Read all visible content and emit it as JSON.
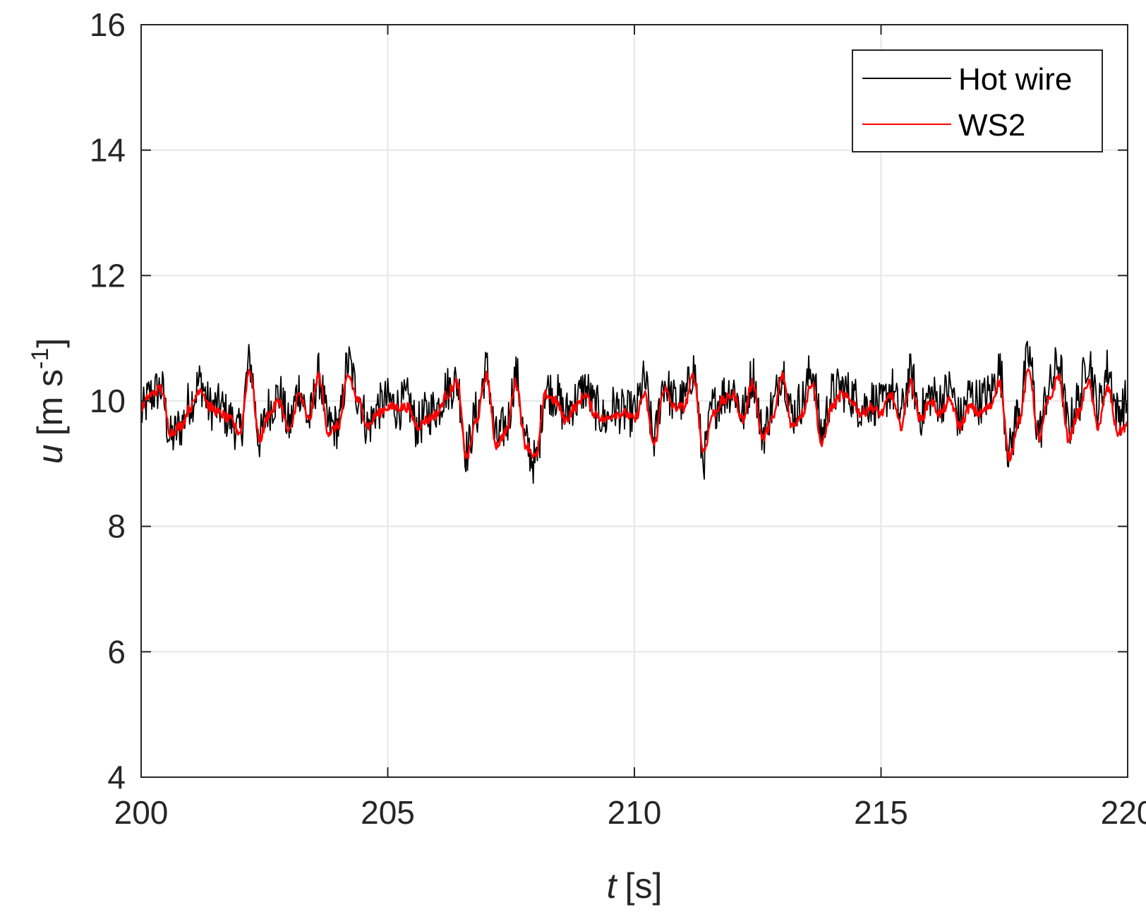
{
  "chart_data": {
    "type": "line",
    "xlabel": {
      "var": "t",
      "unit": "[s]"
    },
    "ylabel": {
      "var": "u",
      "unit_pre": "[m s",
      "unit_sup": "-1",
      "unit_post": "]"
    },
    "xlim": [
      200,
      220
    ],
    "ylim": [
      4,
      16
    ],
    "x_ticks": [
      "200",
      "205",
      "210",
      "215",
      "220"
    ],
    "y_ticks": [
      "4",
      "6",
      "8",
      "10",
      "12",
      "14",
      "16"
    ],
    "grid": true,
    "legend": {
      "placement": "top-right"
    },
    "series": [
      {
        "name": "Hot wire",
        "color": "#000000",
        "x": [
          200.0,
          200.2,
          200.4,
          200.6,
          200.8,
          201.0,
          201.2,
          201.4,
          201.6,
          201.8,
          202.0,
          202.2,
          202.4,
          202.6,
          202.8,
          203.0,
          203.2,
          203.4,
          203.6,
          203.8,
          204.0,
          204.2,
          204.4,
          204.6,
          204.8,
          205.0,
          205.2,
          205.4,
          205.6,
          205.8,
          206.0,
          206.2,
          206.4,
          206.6,
          206.8,
          207.0,
          207.2,
          207.4,
          207.6,
          207.8,
          208.0,
          208.2,
          208.4,
          208.6,
          208.8,
          209.0,
          209.2,
          209.4,
          209.6,
          209.8,
          210.0,
          210.2,
          210.4,
          210.6,
          210.8,
          211.0,
          211.2,
          211.4,
          211.6,
          211.8,
          212.0,
          212.2,
          212.4,
          212.6,
          212.8,
          213.0,
          213.2,
          213.4,
          213.6,
          213.8,
          214.0,
          214.2,
          214.4,
          214.6,
          214.8,
          215.0,
          215.2,
          215.4,
          215.6,
          215.8,
          216.0,
          216.2,
          216.4,
          216.6,
          216.8,
          217.0,
          217.2,
          217.4,
          217.6,
          217.8,
          218.0,
          218.2,
          218.4,
          218.6,
          218.8,
          219.0,
          219.2,
          219.4,
          219.6,
          219.8,
          220.0
        ],
        "values": [
          9.8,
          10.1,
          10.2,
          9.4,
          9.6,
          10.0,
          10.3,
          9.9,
          9.9,
          9.7,
          9.5,
          10.6,
          9.4,
          9.9,
          10.1,
          9.6,
          10.2,
          9.7,
          10.4,
          9.6,
          9.6,
          10.6,
          10.1,
          9.6,
          9.9,
          10.0,
          9.9,
          10.0,
          9.6,
          9.8,
          9.9,
          10.2,
          10.3,
          9.2,
          9.8,
          10.5,
          9.4,
          9.6,
          10.4,
          9.3,
          9.0,
          10.2,
          10.1,
          9.8,
          10.0,
          10.2,
          9.9,
          9.7,
          9.9,
          9.8,
          9.8,
          10.3,
          9.4,
          10.3,
          10.0,
          10.0,
          10.5,
          9.1,
          9.9,
          10.1,
          10.2,
          9.8,
          10.4,
          9.5,
          9.9,
          10.5,
          9.8,
          10.0,
          10.5,
          9.5,
          10.1,
          10.2,
          10.1,
          9.9,
          10.0,
          9.9,
          10.2,
          9.8,
          10.4,
          9.8,
          10.1,
          10.0,
          10.2,
          9.7,
          10.1,
          10.0,
          10.1,
          10.5,
          9.2,
          9.9,
          10.7,
          9.5,
          10.2,
          10.6,
          9.6,
          10.0,
          10.7,
          9.9,
          10.5,
          9.8,
          10.0
        ],
        "noise_amplitude": 0.38
      },
      {
        "name": "WS2",
        "color": "#ff0000",
        "x": [
          200.0,
          200.2,
          200.4,
          200.6,
          200.8,
          201.0,
          201.2,
          201.4,
          201.6,
          201.8,
          202.0,
          202.2,
          202.4,
          202.6,
          202.8,
          203.0,
          203.2,
          203.4,
          203.6,
          203.8,
          204.0,
          204.2,
          204.4,
          204.6,
          204.8,
          205.0,
          205.2,
          205.4,
          205.6,
          205.8,
          206.0,
          206.2,
          206.4,
          206.6,
          206.8,
          207.0,
          207.2,
          207.4,
          207.6,
          207.8,
          208.0,
          208.2,
          208.4,
          208.6,
          208.8,
          209.0,
          209.2,
          209.4,
          209.6,
          209.8,
          210.0,
          210.2,
          210.4,
          210.6,
          210.8,
          211.0,
          211.2,
          211.4,
          211.6,
          211.8,
          212.0,
          212.2,
          212.4,
          212.6,
          212.8,
          213.0,
          213.2,
          213.4,
          213.6,
          213.8,
          214.0,
          214.2,
          214.4,
          214.6,
          214.8,
          215.0,
          215.2,
          215.4,
          215.6,
          215.8,
          216.0,
          216.2,
          216.4,
          216.6,
          216.8,
          217.0,
          217.2,
          217.4,
          217.6,
          217.8,
          218.0,
          218.2,
          218.4,
          218.6,
          218.8,
          219.0,
          219.2,
          219.4,
          219.6,
          219.8,
          220.0
        ],
        "values": [
          9.9,
          10.1,
          10.2,
          9.5,
          9.6,
          9.9,
          10.2,
          9.9,
          9.8,
          9.7,
          9.5,
          10.5,
          9.4,
          9.8,
          10.0,
          9.5,
          10.1,
          9.7,
          10.4,
          9.5,
          9.6,
          10.4,
          10.0,
          9.6,
          9.8,
          9.9,
          9.9,
          9.9,
          9.6,
          9.7,
          9.8,
          10.1,
          10.3,
          9.1,
          9.7,
          10.4,
          9.3,
          9.5,
          10.3,
          9.3,
          9.1,
          10.1,
          10.0,
          9.7,
          9.9,
          10.1,
          9.8,
          9.7,
          9.8,
          9.8,
          9.7,
          10.1,
          9.3,
          10.2,
          9.9,
          9.9,
          10.4,
          9.2,
          9.8,
          10.0,
          10.1,
          9.7,
          10.3,
          9.4,
          9.7,
          10.4,
          9.6,
          9.8,
          10.3,
          9.3,
          9.9,
          10.1,
          10.0,
          9.8,
          9.9,
          9.8,
          10.1,
          9.6,
          10.3,
          9.7,
          10.0,
          9.8,
          10.0,
          9.6,
          9.9,
          9.8,
          9.9,
          10.3,
          9.1,
          9.7,
          10.5,
          9.4,
          10.0,
          10.4,
          9.4,
          9.8,
          10.3,
          9.6,
          10.2,
          9.5,
          9.6
        ],
        "noise_amplitude": 0.08
      }
    ]
  }
}
